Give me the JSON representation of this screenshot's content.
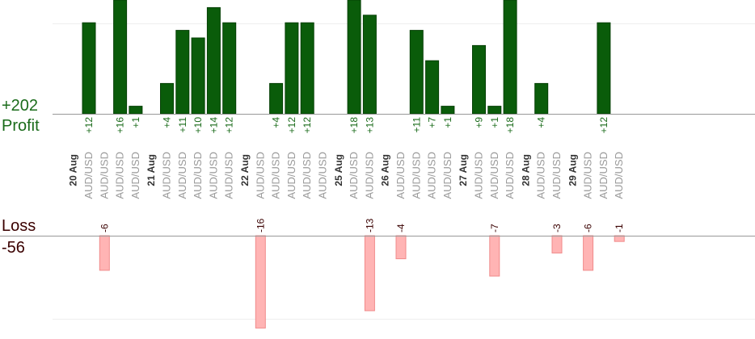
{
  "summary": {
    "profit_total": "+202",
    "profit_label": "Profit",
    "loss_label": "Loss",
    "loss_total": "-56"
  },
  "colors": {
    "profit_fill": "#0a5c0a",
    "profit_stroke": "#064006",
    "loss_fill": "#ffb4b4",
    "loss_stroke": "#f08a8a",
    "profit_text": "#1a6b1a",
    "loss_text": "#3a0000",
    "date_text": "#333333",
    "pair_text": "#999999",
    "axis": "#999999",
    "grid": "#eeeeee"
  },
  "chart_data": {
    "type": "bar",
    "title": "",
    "xlabel": "",
    "ylabel": "",
    "grid": true,
    "profit_panel_ylim": [
      0,
      12
    ],
    "loss_panel_ylim": [
      -10,
      0
    ],
    "categories": [
      "AUD/USD",
      "AUD/USD",
      "AUD/USD",
      "AUD/USD",
      "AUD/USD",
      "AUD/USD",
      "AUD/USD",
      "AUD/USD",
      "AUD/USD",
      "AUD/USD",
      "AUD/USD",
      "AUD/USD",
      "AUD/USD",
      "AUD/USD",
      "AUD/USD",
      "AUD/USD",
      "AUD/USD",
      "AUD/USD",
      "AUD/USD",
      "AUD/USD",
      "AUD/USD",
      "AUD/USD",
      "AUD/USD",
      "AUD/USD",
      "AUD/USD",
      "AUD/USD",
      "AUD/USD",
      "AUD/USD"
    ],
    "date_groups": [
      {
        "label": "20 Aug",
        "start": 0
      },
      {
        "label": "21 Aug",
        "start": 4
      },
      {
        "label": "22 Aug",
        "start": 9
      },
      {
        "label": "25 Aug",
        "start": 14
      },
      {
        "label": "26 Aug",
        "start": 16
      },
      {
        "label": "27 Aug",
        "start": 20
      },
      {
        "label": "28 Aug",
        "start": 23
      },
      {
        "label": "29 Aug",
        "start": 25
      }
    ],
    "series": [
      {
        "name": "Profit",
        "values": [
          12,
          null,
          16,
          1,
          4,
          11,
          10,
          14,
          12,
          null,
          4,
          12,
          12,
          null,
          18,
          13,
          null,
          11,
          7,
          1,
          9,
          1,
          18,
          4,
          null,
          null,
          12,
          null
        ]
      },
      {
        "name": "Loss",
        "values": [
          null,
          -6,
          null,
          null,
          null,
          null,
          null,
          null,
          null,
          -16,
          null,
          null,
          null,
          null,
          null,
          -13,
          -4,
          null,
          null,
          null,
          null,
          -7,
          null,
          null,
          -3,
          -6,
          null,
          -1
        ]
      }
    ]
  }
}
